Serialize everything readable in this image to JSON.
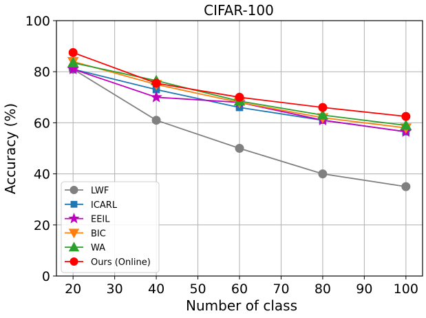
{
  "chart_data": {
    "type": "line",
    "title": "CIFAR-100",
    "xlabel": "Number of class",
    "ylabel": "Accuracy (%)",
    "xlim": [
      16,
      104
    ],
    "ylim": [
      0,
      100
    ],
    "xticks": [
      20,
      30,
      40,
      50,
      60,
      70,
      80,
      90,
      100
    ],
    "yticks": [
      0,
      20,
      40,
      60,
      80,
      100
    ],
    "grid": true,
    "legend_position": "bottom-left",
    "x": [
      20,
      40,
      60,
      80,
      100
    ],
    "series": [
      {
        "name": "LWF",
        "color": "#808080",
        "marker": "circle",
        "values": [
          81,
          61,
          50,
          40,
          35
        ]
      },
      {
        "name": "ICARL",
        "color": "#1f77b4",
        "marker": "square",
        "values": [
          81,
          73,
          66,
          61,
          56.5
        ]
      },
      {
        "name": "EEIL",
        "color": "#bf00bf",
        "marker": "star",
        "values": [
          81,
          70,
          68,
          61,
          56.5
        ]
      },
      {
        "name": "BIC",
        "color": "#ff7f0e",
        "marker": "triangle-down",
        "values": [
          84,
          75,
          68,
          62,
          58
        ]
      },
      {
        "name": "WA",
        "color": "#2ca02c",
        "marker": "triangle-up",
        "values": [
          83.5,
          76.5,
          68.5,
          63,
          59
        ]
      },
      {
        "name": "Ours (Online)",
        "color": "#ff0000",
        "marker": "circle",
        "values": [
          87.5,
          75.5,
          70,
          66,
          62.5
        ]
      }
    ]
  }
}
